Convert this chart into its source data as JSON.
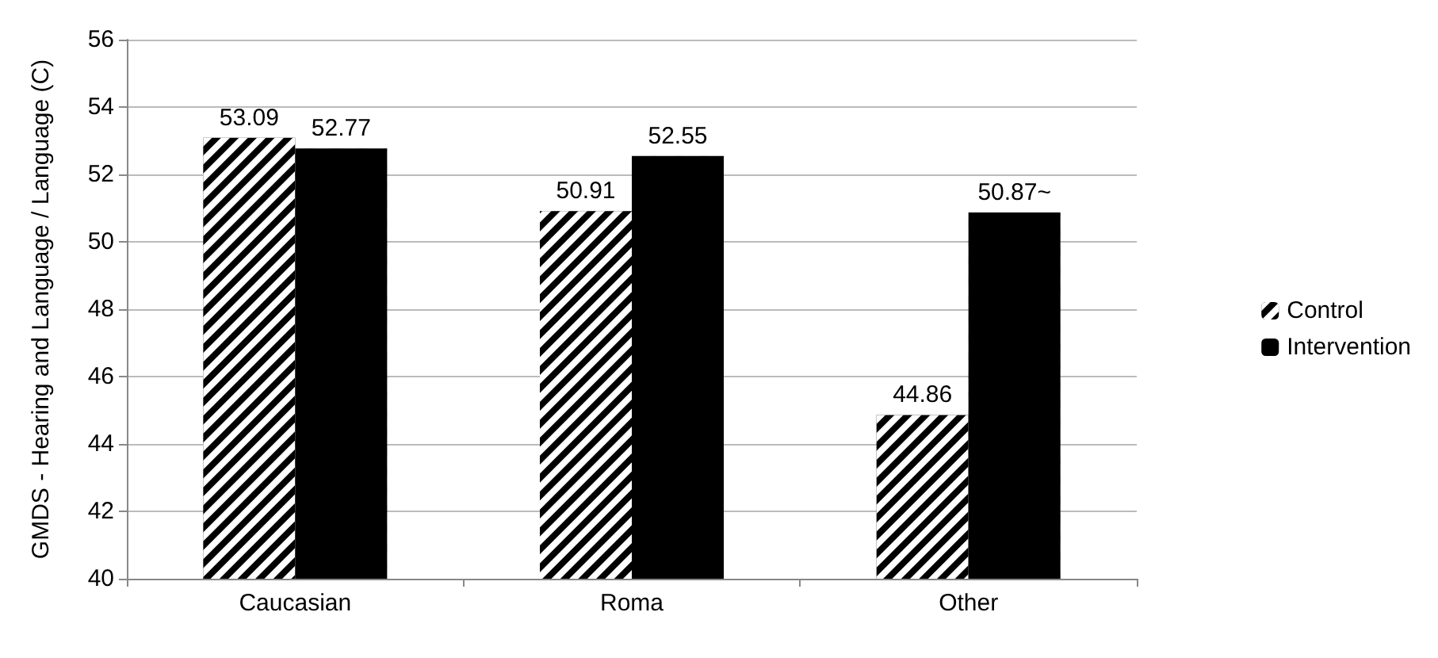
{
  "chart_data": {
    "type": "bar",
    "ylabel": "GMDS - Hearing and Language / Language (C)",
    "categories": [
      "Caucasian",
      "Roma",
      "Other"
    ],
    "series": [
      {
        "name": "Control",
        "color": "#000000",
        "values": [
          53.09,
          50.91,
          44.86
        ],
        "value_labels": [
          "53.09",
          "50.91",
          "44.86"
        ]
      },
      {
        "name": "Intervention",
        "color": "#000000",
        "values": [
          52.77,
          52.55,
          50.87
        ],
        "value_labels": [
          "52.77",
          "52.55",
          "50.87~"
        ]
      }
    ],
    "ylim": [
      40,
      56
    ],
    "yticks": [
      40,
      42,
      44,
      46,
      48,
      50,
      52,
      54,
      56
    ],
    "grid": "y",
    "legend": "right"
  }
}
